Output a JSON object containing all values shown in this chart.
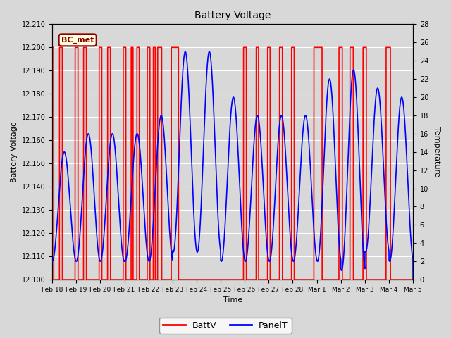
{
  "title": "Battery Voltage",
  "xlabel": "Time",
  "ylabel_left": "Battery Voltage",
  "ylabel_right": "Temperature",
  "annotation": "BC_met",
  "ylim_left": [
    12.1,
    12.21
  ],
  "ylim_right": [
    0,
    28
  ],
  "yticks_left": [
    12.1,
    12.11,
    12.12,
    12.13,
    12.14,
    12.15,
    12.16,
    12.17,
    12.18,
    12.19,
    12.2,
    12.21
  ],
  "yticks_right": [
    0,
    2,
    4,
    6,
    8,
    10,
    12,
    14,
    16,
    18,
    20,
    22,
    24,
    26,
    28
  ],
  "background_color": "#d8d8d8",
  "batt_color": "red",
  "panel_color": "blue",
  "legend_batt": "BattV",
  "legend_panel": "PanelT",
  "x_tick_labels": [
    "Feb 18",
    "Feb 19",
    "Feb 20",
    "Feb 21",
    "Feb 22",
    "Feb 23",
    "Feb 24",
    "Feb 25",
    "Feb 26",
    "Feb 27",
    "Feb 28",
    "Mar 1",
    "Mar 2",
    "Mar 3",
    "Mar 4",
    "Mar 5"
  ],
  "x_tick_positions": [
    0,
    1,
    2,
    3,
    4,
    5,
    6,
    7,
    8,
    9,
    10,
    11,
    12,
    13,
    14,
    15
  ],
  "charge_periods": [
    [
      0.0,
      0.06
    ],
    [
      0.3,
      0.42
    ],
    [
      0.95,
      1.07
    ],
    [
      1.3,
      1.42
    ],
    [
      1.95,
      2.06
    ],
    [
      2.3,
      2.42
    ],
    [
      2.95,
      3.06
    ],
    [
      3.28,
      3.36
    ],
    [
      3.52,
      3.62
    ],
    [
      3.95,
      4.06
    ],
    [
      4.2,
      4.28
    ],
    [
      4.38,
      4.55
    ],
    [
      4.95,
      5.25
    ],
    [
      7.95,
      8.07
    ],
    [
      8.48,
      8.58
    ],
    [
      8.95,
      9.06
    ],
    [
      9.45,
      9.57
    ],
    [
      9.95,
      10.06
    ],
    [
      10.88,
      11.22
    ],
    [
      11.92,
      12.06
    ],
    [
      12.38,
      12.52
    ],
    [
      12.92,
      13.06
    ],
    [
      13.88,
      14.06
    ]
  ],
  "panel_segments": [
    {
      "t_start": 0.0,
      "t_end": 1.0,
      "base": 8,
      "amp": 6,
      "phase": 0.25
    },
    {
      "t_start": 1.0,
      "t_end": 2.0,
      "base": 9,
      "amp": 7,
      "phase": 0.25
    },
    {
      "t_start": 2.0,
      "t_end": 3.0,
      "base": 9,
      "amp": 7,
      "phase": 0.25
    },
    {
      "t_start": 3.0,
      "t_end": 4.0,
      "base": 9,
      "amp": 7,
      "phase": 0.28
    },
    {
      "t_start": 4.0,
      "t_end": 5.0,
      "base": 10,
      "amp": 8,
      "phase": 0.28
    },
    {
      "t_start": 5.0,
      "t_end": 6.0,
      "base": 14,
      "amp": 11,
      "phase": 0.28
    },
    {
      "t_start": 6.0,
      "t_end": 7.0,
      "base": 14,
      "amp": 11,
      "phase": 0.28
    },
    {
      "t_start": 7.0,
      "t_end": 8.0,
      "base": 11,
      "amp": 9,
      "phase": 0.28
    },
    {
      "t_start": 8.0,
      "t_end": 9.0,
      "base": 10,
      "amp": 8,
      "phase": 0.28
    },
    {
      "t_start": 9.0,
      "t_end": 10.0,
      "base": 10,
      "amp": 8,
      "phase": 0.28
    },
    {
      "t_start": 10.0,
      "t_end": 11.0,
      "base": 10,
      "amp": 8,
      "phase": 0.28
    },
    {
      "t_start": 11.0,
      "t_end": 12.0,
      "base": 12,
      "amp": 10,
      "phase": 0.28
    },
    {
      "t_start": 12.0,
      "t_end": 13.0,
      "base": 12,
      "amp": 11,
      "phase": 0.28
    },
    {
      "t_start": 13.0,
      "t_end": 14.0,
      "base": 12,
      "amp": 9,
      "phase": 0.28
    },
    {
      "t_start": 14.0,
      "t_end": 15.0,
      "base": 11,
      "amp": 9,
      "phase": 0.28
    }
  ]
}
